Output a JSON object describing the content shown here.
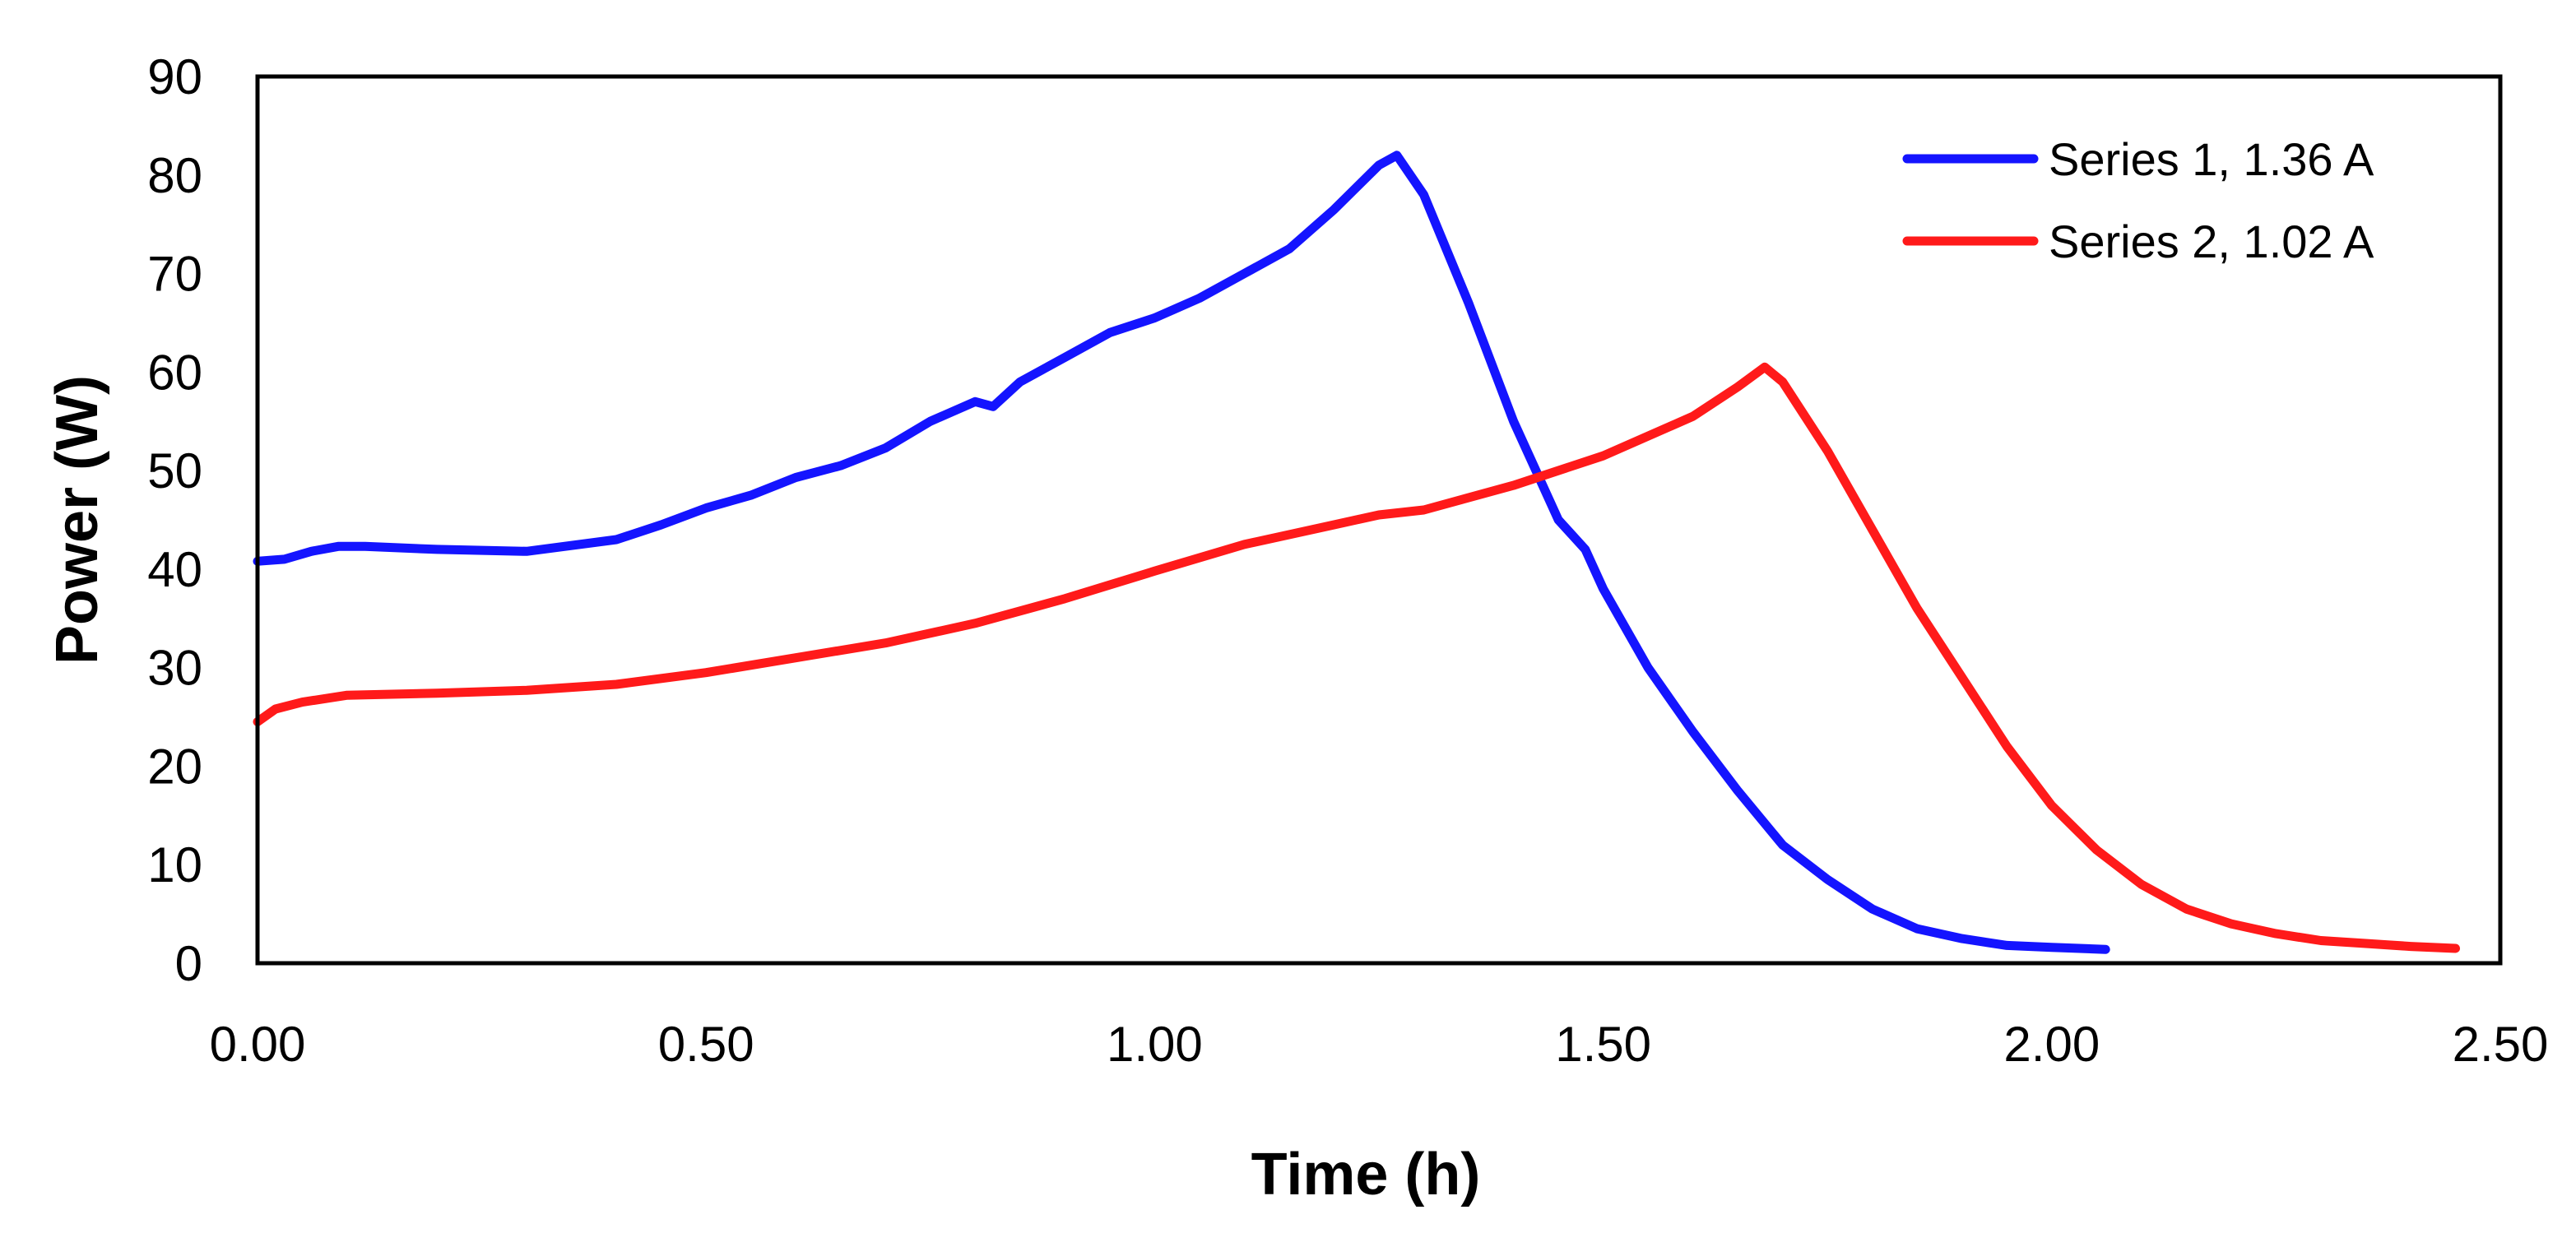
{
  "chart_data": {
    "type": "line",
    "title": "",
    "xlabel": "Time (h)",
    "ylabel": "Power (W)",
    "xlim": [
      0,
      2.5
    ],
    "ylim": [
      0,
      90
    ],
    "x_ticks": [
      0,
      0.5,
      1,
      1.5,
      2,
      2.5
    ],
    "x_tick_labels": [
      "0.00",
      "0.50",
      "1.00",
      "1.50",
      "2.00",
      "2.50"
    ],
    "y_ticks": [
      0,
      10,
      20,
      30,
      40,
      50,
      60,
      70,
      80,
      90
    ],
    "y_tick_labels": [
      "0",
      "10",
      "20",
      "30",
      "40",
      "50",
      "60",
      "70",
      "80",
      "90"
    ],
    "grid": false,
    "legend_position": "top-right",
    "series": [
      {
        "name": "Series 1, 1.36 A",
        "color": "#1414ff",
        "x": [
          0,
          0.03,
          0.06,
          0.09,
          0.12,
          0.2,
          0.3,
          0.4,
          0.45,
          0.5,
          0.55,
          0.6,
          0.65,
          0.7,
          0.75,
          0.8,
          0.82,
          0.85,
          0.9,
          0.95,
          1.0,
          1.05,
          1.1,
          1.15,
          1.2,
          1.25,
          1.27,
          1.3,
          1.35,
          1.4,
          1.45,
          1.48,
          1.5,
          1.55,
          1.6,
          1.65,
          1.7,
          1.75,
          1.8,
          1.85,
          1.9,
          1.95,
          2.0,
          2.06
        ],
        "values": [
          40.8,
          41,
          41.8,
          42.3,
          42.3,
          42,
          41.8,
          43,
          44.5,
          46.2,
          47.5,
          49.3,
          50.5,
          52.3,
          55,
          57,
          56.5,
          59,
          61.5,
          64,
          65.5,
          67.5,
          70,
          72.5,
          76.5,
          81,
          82,
          78,
          67,
          55,
          45,
          42,
          38,
          30,
          23.5,
          17.5,
          12,
          8.5,
          5.5,
          3.5,
          2.5,
          1.8,
          1.6,
          1.4
        ]
      },
      {
        "name": "Series 2, 1.02 A",
        "color": "#ff1a1a",
        "x": [
          0,
          0.02,
          0.05,
          0.1,
          0.2,
          0.3,
          0.4,
          0.5,
          0.6,
          0.7,
          0.8,
          0.9,
          1.0,
          1.1,
          1.2,
          1.25,
          1.3,
          1.4,
          1.5,
          1.6,
          1.65,
          1.68,
          1.7,
          1.75,
          1.8,
          1.85,
          1.9,
          1.95,
          2.0,
          2.05,
          2.1,
          2.15,
          2.2,
          2.25,
          2.3,
          2.35,
          2.4,
          2.45
        ],
        "values": [
          24.5,
          25.8,
          26.5,
          27.2,
          27.4,
          27.7,
          28.3,
          29.5,
          31,
          32.5,
          34.5,
          37,
          39.8,
          42.5,
          44.5,
          45.5,
          46,
          48.5,
          51.5,
          55.5,
          58.5,
          60.5,
          59,
          52,
          44,
          36,
          29,
          22,
          16,
          11.5,
          8,
          5.5,
          4,
          3,
          2.3,
          2,
          1.7,
          1.5
        ]
      }
    ]
  }
}
